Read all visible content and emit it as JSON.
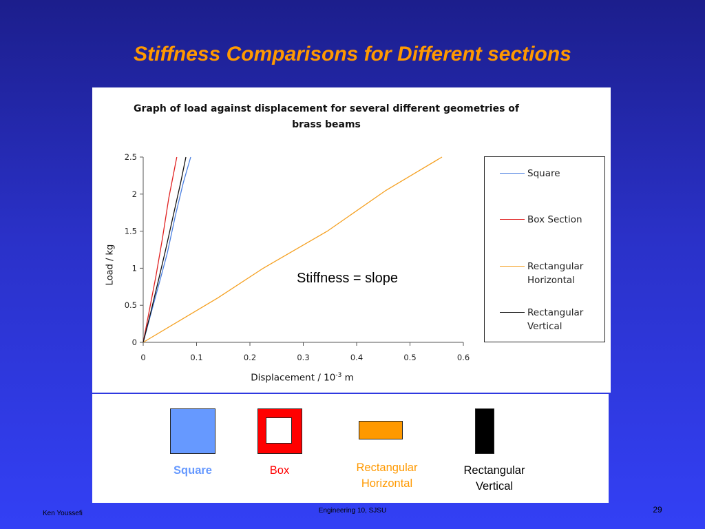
{
  "slide": {
    "title": "Stiffness Comparisons for Different sections",
    "footer_author": "Ken Youssefi",
    "footer_course": "Engineering 10, SJSU",
    "page_number": "29"
  },
  "chart_data": {
    "type": "line",
    "title_line1": "Graph of load against displacement for several different geometries of",
    "title_line2": "brass beams",
    "ylabel": "Load / kg",
    "xlabel_main": "Displacement / 10",
    "xlabel_exp": "-3",
    "xlabel_unit": " m",
    "xlim": [
      0,
      0.6
    ],
    "ylim": [
      0,
      2.5
    ],
    "x_ticks": [
      "0",
      "0.1",
      "0.2",
      "0.3",
      "0.4",
      "0.5",
      "0.6"
    ],
    "y_ticks": [
      "0",
      "0.5",
      "1",
      "1.5",
      "2",
      "2.5"
    ],
    "grid": false,
    "legend_position": "right",
    "annotation": "Stiffness = slope",
    "series": [
      {
        "name": "Square",
        "color": "#4a7fe0",
        "x": [
          0,
          0.015,
          0.03,
          0.045,
          0.06,
          0.075,
          0.089
        ],
        "y": [
          0,
          0.4,
          0.8,
          1.2,
          1.7,
          2.15,
          2.5
        ]
      },
      {
        "name": "Box Section",
        "color": "#e02020",
        "x": [
          0,
          0.012,
          0.024,
          0.036,
          0.048,
          0.063
        ],
        "y": [
          0,
          0.45,
          0.9,
          1.4,
          1.95,
          2.5
        ]
      },
      {
        "name": "Rectangular Horizontal",
        "color": "#f5a020",
        "x": [
          0,
          0.07,
          0.14,
          0.225,
          0.345,
          0.455,
          0.56
        ],
        "y": [
          0,
          0.3,
          0.6,
          1.0,
          1.5,
          2.05,
          2.5
        ]
      },
      {
        "name": "Rectangular Vertical",
        "color": "#111111",
        "x": [
          0,
          0.014,
          0.028,
          0.042,
          0.056,
          0.07,
          0.08
        ],
        "y": [
          0,
          0.4,
          0.82,
          1.25,
          1.7,
          2.15,
          2.5
        ]
      }
    ],
    "legend": [
      {
        "label_line1": "Square",
        "label_line2": "",
        "color": "#4a7fe0"
      },
      {
        "label_line1": "Box Section",
        "label_line2": "",
        "color": "#e02020"
      },
      {
        "label_line1": "Rectangular",
        "label_line2": "Horizontal",
        "color": "#f5a020"
      },
      {
        "label_line1": "Rectangular",
        "label_line2": "Vertical",
        "color": "#111111"
      }
    ]
  },
  "shapes": {
    "square_label": "Square",
    "box_label": "Box",
    "rect_h_label_line1": "Rectangular",
    "rect_h_label_line2": "Horizontal",
    "rect_v_label_line1": "Rectangular",
    "rect_v_label_line2": "Vertical",
    "colors": {
      "square": "#6699ff",
      "box": "#ff0000",
      "rect_h": "#ff9900",
      "rect_v": "#000000"
    }
  }
}
